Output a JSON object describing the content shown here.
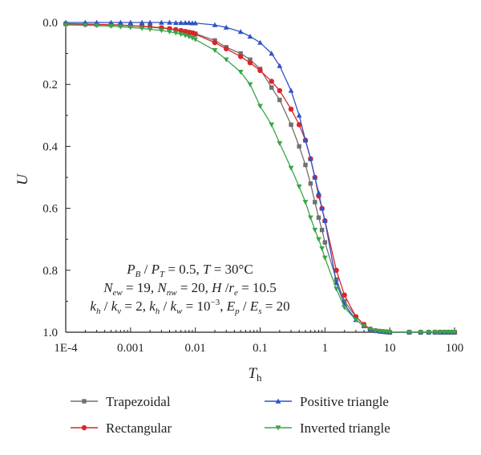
{
  "colors": {
    "Trapezoidal": "#707070",
    "Rectangular": "#d8262b",
    "Positive triangle": "#2d54c6",
    "Inverted triangle": "#3aa548",
    "axis": "#222222"
  },
  "chart_data": {
    "type": "line",
    "xlabel": "T",
    "xlabel_sub": "h",
    "ylabel": "U",
    "x_scale": "log",
    "xlim": [
      0.0001,
      100
    ],
    "ylim": [
      0.0,
      1.0
    ],
    "y_inverted": true,
    "x_ticks": [
      0.0001,
      0.001,
      0.01,
      0.1,
      1,
      10,
      100
    ],
    "x_tick_labels": [
      "1E-4",
      "0.001",
      "0.01",
      "0.1",
      "1",
      "10",
      "100"
    ],
    "y_ticks": [
      0.0,
      0.2,
      0.4,
      0.6,
      0.8,
      1.0
    ],
    "y_tick_labels": [
      "0.0",
      "0.2",
      "0.4",
      "0.6",
      "0.8",
      "1.0"
    ],
    "grid": false,
    "legend_position": "bottom",
    "annotation_lines": [
      "P_B / P_T = 0.5, T = 30°C",
      "N_ew = 19, N_nw = 20, H /r_e = 10.5",
      "k_h / k_v = 2, k_h / k_w = 10^-3, E_p / E_s = 20"
    ],
    "series": [
      {
        "name": "Trapezoidal",
        "marker": "square",
        "x": [
          0.0001,
          0.0002,
          0.0003,
          0.0005,
          0.0007,
          0.001,
          0.0015,
          0.002,
          0.003,
          0.004,
          0.005,
          0.006,
          0.007,
          0.008,
          0.009,
          0.01,
          0.02,
          0.03,
          0.05,
          0.07,
          0.1,
          0.15,
          0.2,
          0.3,
          0.4,
          0.5,
          0.6,
          0.7,
          0.8,
          0.9,
          1.0,
          1.5,
          2,
          3,
          4,
          5,
          6,
          7,
          8,
          9,
          10,
          20,
          30,
          40,
          50,
          60,
          70,
          80,
          90,
          100
        ],
        "y": [
          0.005,
          0.006,
          0.007,
          0.008,
          0.009,
          0.011,
          0.013,
          0.015,
          0.018,
          0.021,
          0.024,
          0.027,
          0.029,
          0.031,
          0.033,
          0.036,
          0.058,
          0.08,
          0.1,
          0.12,
          0.15,
          0.21,
          0.25,
          0.33,
          0.4,
          0.46,
          0.52,
          0.58,
          0.63,
          0.67,
          0.71,
          0.83,
          0.9,
          0.95,
          0.975,
          0.99,
          0.995,
          0.997,
          0.998,
          0.999,
          1.0,
          1.0,
          1.0,
          1.0,
          1.0,
          1.0,
          1.0,
          1.0,
          1.0,
          1.0
        ]
      },
      {
        "name": "Rectangular",
        "marker": "circle",
        "x": [
          0.0001,
          0.0002,
          0.0003,
          0.0005,
          0.0007,
          0.001,
          0.0015,
          0.002,
          0.003,
          0.004,
          0.005,
          0.006,
          0.007,
          0.008,
          0.009,
          0.01,
          0.02,
          0.03,
          0.05,
          0.07,
          0.1,
          0.15,
          0.2,
          0.3,
          0.4,
          0.5,
          0.6,
          0.7,
          0.8,
          0.9,
          1.0,
          1.5,
          2,
          3,
          4,
          5,
          6,
          7,
          8,
          9,
          10,
          20,
          30,
          40,
          50,
          60,
          70,
          80,
          90,
          100
        ],
        "y": [
          0.004,
          0.005,
          0.006,
          0.007,
          0.008,
          0.01,
          0.012,
          0.014,
          0.017,
          0.02,
          0.023,
          0.026,
          0.029,
          0.032,
          0.034,
          0.038,
          0.065,
          0.085,
          0.11,
          0.13,
          0.155,
          0.19,
          0.22,
          0.28,
          0.33,
          0.38,
          0.44,
          0.5,
          0.56,
          0.6,
          0.64,
          0.8,
          0.88,
          0.95,
          0.975,
          0.99,
          0.995,
          0.997,
          0.998,
          0.999,
          1.0,
          1.0,
          1.0,
          1.0,
          1.0,
          1.0,
          1.0,
          1.0,
          1.0,
          1.0
        ]
      },
      {
        "name": "Positive triangle",
        "marker": "triangle-up",
        "x": [
          0.0001,
          0.0002,
          0.0003,
          0.0005,
          0.0007,
          0.001,
          0.0015,
          0.002,
          0.003,
          0.004,
          0.005,
          0.006,
          0.007,
          0.008,
          0.009,
          0.01,
          0.02,
          0.03,
          0.05,
          0.07,
          0.1,
          0.15,
          0.2,
          0.3,
          0.4,
          0.5,
          0.6,
          0.7,
          0.8,
          0.9,
          1.0,
          1.5,
          2,
          3,
          4,
          5,
          6,
          7,
          8,
          9,
          10,
          20,
          30,
          40,
          50,
          60,
          70,
          80,
          90,
          100
        ],
        "y": [
          0.0,
          0.0,
          0.0,
          0.0,
          0.0,
          0.0,
          0.0,
          0.0,
          0.0,
          0.0,
          0.001,
          0.001,
          0.001,
          0.001,
          0.002,
          0.002,
          0.008,
          0.016,
          0.03,
          0.045,
          0.065,
          0.1,
          0.14,
          0.22,
          0.3,
          0.38,
          0.44,
          0.5,
          0.55,
          0.6,
          0.64,
          0.84,
          0.91,
          0.96,
          0.98,
          0.99,
          0.995,
          0.997,
          0.998,
          0.999,
          1.0,
          1.0,
          1.0,
          1.0,
          1.0,
          1.0,
          1.0,
          1.0,
          1.0,
          1.0
        ]
      },
      {
        "name": "Inverted triangle",
        "marker": "triangle-down",
        "x": [
          0.0001,
          0.0002,
          0.0003,
          0.0005,
          0.0007,
          0.001,
          0.0015,
          0.002,
          0.003,
          0.004,
          0.005,
          0.006,
          0.007,
          0.008,
          0.009,
          0.01,
          0.02,
          0.03,
          0.05,
          0.07,
          0.1,
          0.15,
          0.2,
          0.3,
          0.4,
          0.5,
          0.6,
          0.7,
          0.8,
          0.9,
          1.0,
          1.5,
          2,
          3,
          4,
          5,
          6,
          7,
          8,
          9,
          10,
          20,
          30,
          40,
          50,
          60,
          70,
          80,
          90,
          100
        ],
        "y": [
          0.008,
          0.009,
          0.01,
          0.012,
          0.014,
          0.016,
          0.019,
          0.022,
          0.026,
          0.03,
          0.034,
          0.038,
          0.042,
          0.046,
          0.05,
          0.055,
          0.09,
          0.12,
          0.16,
          0.2,
          0.27,
          0.33,
          0.39,
          0.47,
          0.53,
          0.58,
          0.63,
          0.67,
          0.7,
          0.73,
          0.76,
          0.86,
          0.92,
          0.96,
          0.98,
          0.99,
          0.995,
          0.997,
          0.998,
          0.999,
          1.0,
          1.0,
          1.0,
          1.0,
          1.0,
          1.0,
          1.0,
          1.0,
          1.0,
          1.0
        ]
      }
    ]
  }
}
